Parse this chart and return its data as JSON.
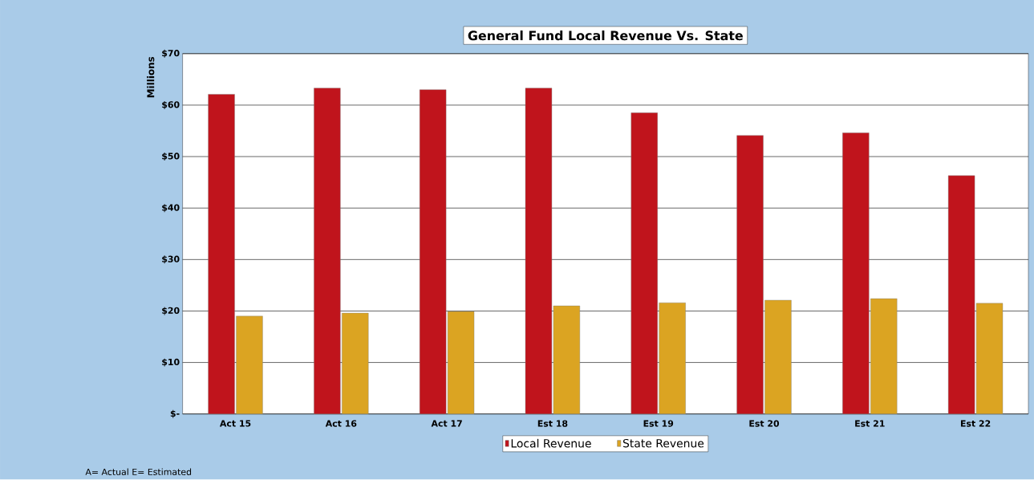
{
  "chart_data": {
    "type": "bar",
    "title": "General Fund Local Revenue Vs. State",
    "ylabel": "Millions",
    "categories": [
      "Act 15",
      "Act 16",
      "Act 17",
      "Est 18",
      "Est 19",
      "Est 20",
      "Est 21",
      "Est 22"
    ],
    "series": [
      {
        "name": "Local Revenue",
        "color": "#c0141c",
        "values": [
          62.1,
          63.3,
          63.0,
          63.3,
          58.5,
          54.1,
          54.6,
          46.3
        ]
      },
      {
        "name": "State Revenue",
        "color": "#dba422",
        "values": [
          19.0,
          19.6,
          19.9,
          21.0,
          21.6,
          22.1,
          22.4,
          21.5
        ]
      }
    ],
    "ylim": [
      0,
      70
    ],
    "yticks": [
      {
        "value": 0,
        "label": "$-"
      },
      {
        "value": 10,
        "label": "$10"
      },
      {
        "value": 20,
        "label": "$20"
      },
      {
        "value": 30,
        "label": "$30"
      },
      {
        "value": 40,
        "label": "$40"
      },
      {
        "value": 50,
        "label": "$50"
      },
      {
        "value": 60,
        "label": "$60"
      },
      {
        "value": 70,
        "label": "$70"
      }
    ],
    "grid": "y",
    "legend": "bottom",
    "annotations": [
      "A= Actual E= Estimated"
    ]
  }
}
